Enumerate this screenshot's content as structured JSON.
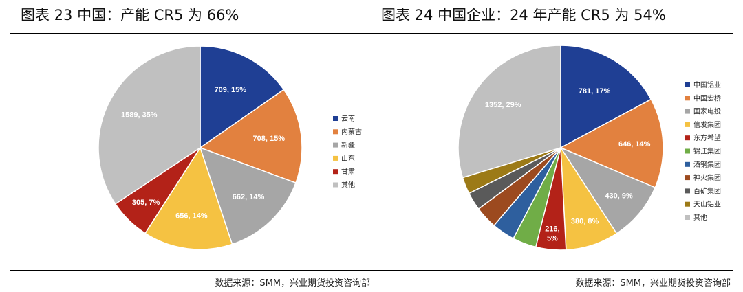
{
  "charts": {
    "left": {
      "title": "图表 23 中国：产能 CR5 为 66%",
      "source": "数据来源：SMM，兴业期货投资咨询部"
    },
    "right": {
      "title": "图表 24 中国企业：24 年产能 CR5 为 54%",
      "source": "数据来源：SMM，兴业期货投资咨询部"
    }
  },
  "chart_data": [
    {
      "type": "pie",
      "title": "图表 23 中国：产能 CR5 为 66%",
      "categories": [
        "云南",
        "内蒙古",
        "新疆",
        "山东",
        "甘肃",
        "其他"
      ],
      "values": [
        709,
        708,
        662,
        656,
        305,
        1589
      ],
      "percent_labels": [
        "15%",
        "15%",
        "14%",
        "14%",
        "7%",
        "35%"
      ],
      "data_labels": [
        "709, 15%",
        "708, 15%",
        "662, 14%",
        "656, 14%",
        "305, 7%",
        "1589, 35%"
      ],
      "colors": [
        "#1f3f94",
        "#e2813f",
        "#a6a6a6",
        "#f5c242",
        "#b32218",
        "#c0c0c0"
      ],
      "legend": "right"
    },
    {
      "type": "pie",
      "title": "图表 24 中国企业：24 年产能 CR5 为 54%",
      "categories": [
        "中国铝业",
        "中国宏桥",
        "国家电投",
        "信发集团",
        "东方希望",
        "锦江集团",
        "酒钢集团",
        "神火集团",
        "百矿集团",
        "天山铝业",
        "其他"
      ],
      "values": [
        781,
        646,
        430,
        380,
        216,
        170,
        165,
        160,
        130,
        120,
        1352
      ],
      "data_labels": [
        "781, 17%",
        "646, 14%",
        "430, 9%",
        "380, 8%",
        "216,\n5%",
        "",
        "",
        "",
        "",
        "",
        "1352, 29%"
      ],
      "colors": [
        "#1f3f94",
        "#e2813f",
        "#a6a6a6",
        "#f5c242",
        "#b32218",
        "#70ad47",
        "#2e5f9e",
        "#9c4a1f",
        "#5a5a5a",
        "#9c7a17",
        "#c0c0c0"
      ],
      "legend": "right"
    }
  ]
}
